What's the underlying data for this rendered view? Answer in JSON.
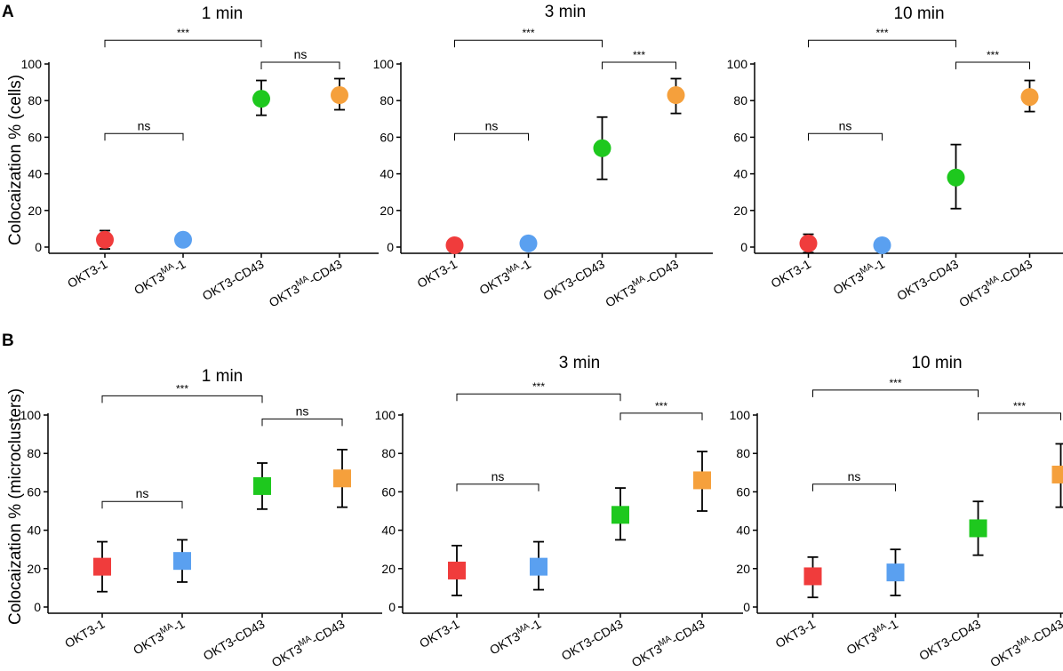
{
  "figure": {
    "panel_labels": [
      "A",
      "B"
    ],
    "row_ylabels": [
      "Colocaization % (cells)",
      "Colocaization % (microclusters)"
    ],
    "ytick_labels": [
      "0",
      "20",
      "40",
      "60",
      "80",
      "100"
    ],
    "category_labels": [
      {
        "base": "OKT3",
        "sup": "",
        "suffix": "-1"
      },
      {
        "base": "OKT3",
        "sup": "MA",
        "suffix": "-1"
      },
      {
        "base": "OKT3",
        "sup": "",
        "suffix": "-CD43"
      },
      {
        "base": "OKT3",
        "sup": "MA",
        "suffix": "-CD43"
      }
    ],
    "colors": {
      "OKT3-1": "#f03c3c",
      "OKT3MA-1": "#5aa0f0",
      "OKT3-CD43": "#1ec81e",
      "OKT3MA-CD43": "#f5a03c"
    }
  },
  "chart_data": [
    {
      "type": "scatter",
      "marker": "circle",
      "panel": "A",
      "title": "1 min",
      "ylabel": "Colocaization % (cells)",
      "ylim": [
        0,
        100
      ],
      "categories": [
        "OKT3-1",
        "OKT3MA-1",
        "OKT3-CD43",
        "OKT3MA-CD43"
      ],
      "values": [
        4,
        4,
        81,
        83
      ],
      "error_low": [
        -1,
        null,
        72,
        75
      ],
      "error_high": [
        9,
        null,
        91,
        92
      ],
      "annotations": [
        {
          "from": 0,
          "to": 1,
          "level": 62,
          "label": "ns"
        },
        {
          "from": 0,
          "to": 2,
          "level": 113,
          "label": "***"
        },
        {
          "from": 2,
          "to": 3,
          "level": 101,
          "label": "ns"
        }
      ]
    },
    {
      "type": "scatter",
      "marker": "circle",
      "panel": "A",
      "title": "3 min",
      "ylabel": "",
      "ylim": [
        0,
        100
      ],
      "categories": [
        "OKT3-1",
        "OKT3MA-1",
        "OKT3-CD43",
        "OKT3MA-CD43"
      ],
      "values": [
        1,
        2,
        54,
        83
      ],
      "error_low": [
        null,
        null,
        37,
        73
      ],
      "error_high": [
        null,
        null,
        71,
        92
      ],
      "annotations": [
        {
          "from": 0,
          "to": 1,
          "level": 62,
          "label": "ns"
        },
        {
          "from": 0,
          "to": 2,
          "level": 113,
          "label": "***"
        },
        {
          "from": 2,
          "to": 3,
          "level": 101,
          "label": "***"
        }
      ]
    },
    {
      "type": "scatter",
      "marker": "circle",
      "panel": "A",
      "title": "10 min",
      "ylabel": "",
      "ylim": [
        0,
        100
      ],
      "categories": [
        "OKT3-1",
        "OKT3MA-1",
        "OKT3-CD43",
        "OKT3MA-CD43"
      ],
      "values": [
        2,
        1,
        38,
        82
      ],
      "error_low": [
        -3,
        null,
        21,
        74
      ],
      "error_high": [
        7,
        null,
        56,
        91
      ],
      "annotations": [
        {
          "from": 0,
          "to": 1,
          "level": 62,
          "label": "ns"
        },
        {
          "from": 0,
          "to": 2,
          "level": 113,
          "label": "***"
        },
        {
          "from": 2,
          "to": 3,
          "level": 101,
          "label": "***"
        }
      ]
    },
    {
      "type": "scatter",
      "marker": "square",
      "panel": "B",
      "title": "1 min",
      "ylabel": "Colocaization % (microclusters)",
      "ylim": [
        0,
        100
      ],
      "categories": [
        "OKT3-1",
        "OKT3MA-1",
        "OKT3-CD43",
        "OKT3MA-CD43"
      ],
      "values": [
        21,
        24,
        63,
        67
      ],
      "error_low": [
        8,
        13,
        51,
        52
      ],
      "error_high": [
        34,
        35,
        75,
        82
      ],
      "annotations": [
        {
          "from": 0,
          "to": 1,
          "level": 55,
          "label": "ns"
        },
        {
          "from": 0,
          "to": 2,
          "level": 110,
          "label": "***"
        },
        {
          "from": 2,
          "to": 3,
          "level": 98,
          "label": "ns"
        }
      ]
    },
    {
      "type": "scatter",
      "marker": "square",
      "panel": "B",
      "title": "3 min",
      "ylabel": "",
      "ylim": [
        0,
        100
      ],
      "categories": [
        "OKT3-1",
        "OKT3MA-1",
        "OKT3-CD43",
        "OKT3MA-CD43"
      ],
      "values": [
        19,
        21,
        48,
        66
      ],
      "error_low": [
        6,
        9,
        35,
        50
      ],
      "error_high": [
        32,
        34,
        62,
        81
      ],
      "annotations": [
        {
          "from": 0,
          "to": 1,
          "level": 64,
          "label": "ns"
        },
        {
          "from": 0,
          "to": 2,
          "level": 111,
          "label": "***"
        },
        {
          "from": 2,
          "to": 3,
          "level": 101,
          "label": "***"
        }
      ]
    },
    {
      "type": "scatter",
      "marker": "square",
      "panel": "B",
      "title": "10 min",
      "ylabel": "",
      "ylim": [
        0,
        100
      ],
      "categories": [
        "OKT3-1",
        "OKT3MA-1",
        "OKT3-CD43",
        "OKT3MA-CD43"
      ],
      "values": [
        16,
        18,
        41,
        69
      ],
      "error_low": [
        5,
        6,
        27,
        52
      ],
      "error_high": [
        26,
        30,
        55,
        85
      ],
      "annotations": [
        {
          "from": 0,
          "to": 1,
          "level": 64,
          "label": "ns"
        },
        {
          "from": 0,
          "to": 2,
          "level": 113,
          "label": "***"
        },
        {
          "from": 2,
          "to": 3,
          "level": 101,
          "label": "***"
        }
      ]
    }
  ]
}
